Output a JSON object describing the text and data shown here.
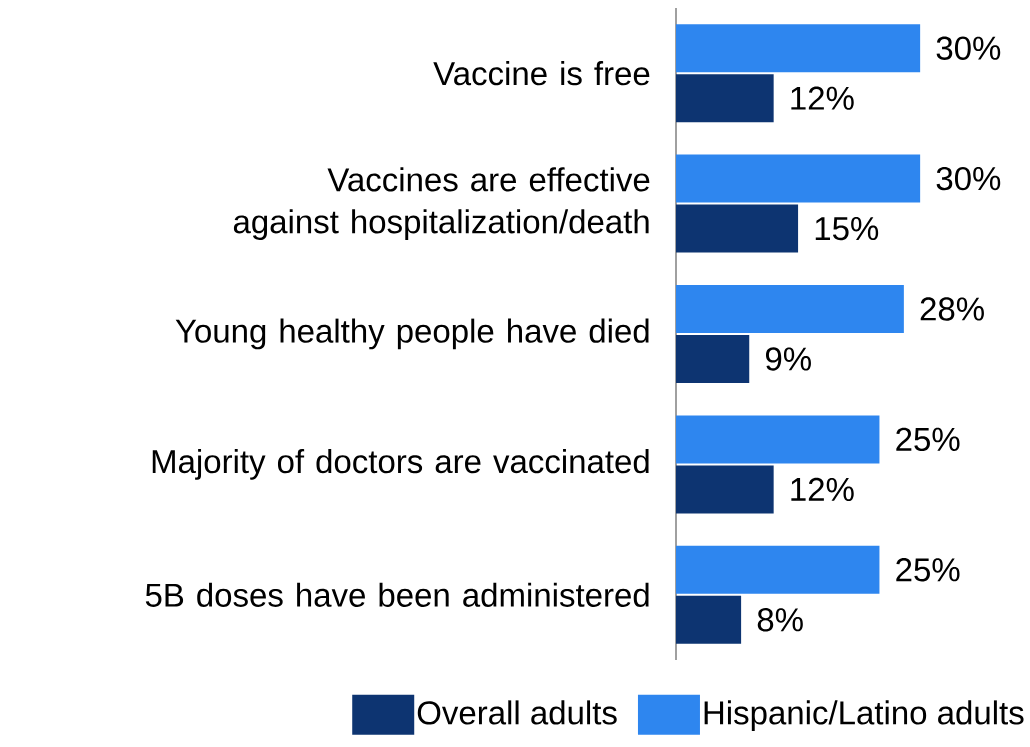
{
  "chart_data": {
    "type": "bar",
    "orientation": "horizontal",
    "categories": [
      "Vaccine is free",
      "Vaccines are effective against hospitalization/death",
      "Young healthy people have died",
      "Majority of doctors are vaccinated",
      "5B doses have been administered"
    ],
    "series": [
      {
        "name": "Overall adults",
        "color": "#0d3471",
        "values": [
          12,
          15,
          9,
          12,
          8
        ],
        "value_labels": [
          "12%",
          "15%",
          "9%",
          "12%",
          "8%"
        ]
      },
      {
        "name": "Hispanic/Latino adults",
        "color": "#2e86ef",
        "values": [
          30,
          30,
          28,
          25,
          25
        ],
        "value_labels": [
          "30%",
          "30%",
          "28%",
          "25%",
          "25%"
        ]
      }
    ],
    "legend": "bottom"
  }
}
